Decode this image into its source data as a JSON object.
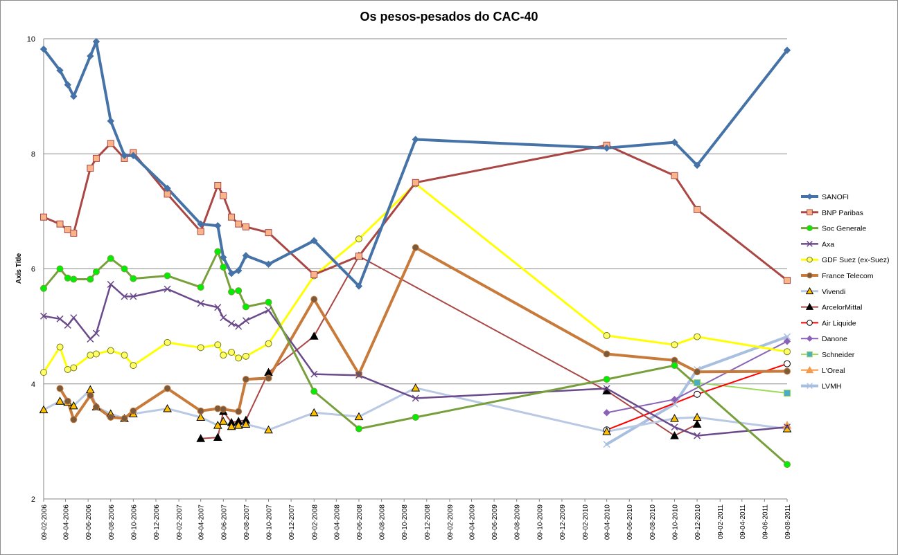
{
  "chart_data": {
    "type": "line",
    "title": "Os pesos-pesados do CAC-40",
    "xlabel": "",
    "ylabel": "Axis Title",
    "ylim": [
      2,
      10
    ],
    "yticks": [
      "2",
      "4",
      "6",
      "8",
      "10"
    ],
    "xlim": [
      "2006-02-09",
      "2011-08-09"
    ],
    "grid": "horizontal",
    "legend_position": "right",
    "x_ticks": [
      "09-02-2006",
      "09-04-2006",
      "09-06-2006",
      "09-08-2006",
      "09-10-2006",
      "09-12-2006",
      "09-02-2007",
      "09-04-2007",
      "09-06-2007",
      "09-08-2007",
      "09-10-2007",
      "09-12-2007",
      "09-02-2008",
      "09-04-2008",
      "09-06-2008",
      "09-08-2008",
      "09-10-2008",
      "09-12-2008",
      "09-02-2009",
      "09-04-2009",
      "09-06-2009",
      "09-08-2009",
      "09-10-2009",
      "09-12-2009",
      "09-02-2010",
      "09-04-2010",
      "09-06-2010",
      "09-08-2010",
      "09-10-2010",
      "09-12-2010",
      "09-02-2011",
      "09-04-2011",
      "09-06-2011",
      "09-08-2011"
    ],
    "series": [
      {
        "name": "SANOFI",
        "color": "#4572a7",
        "marker": "diamond",
        "x": [
          "2006-02-09",
          "2006-03-25",
          "2006-04-15",
          "2006-05-01",
          "2006-06-15",
          "2006-07-01",
          "2006-08-09",
          "2006-09-15",
          "2006-10-09",
          "2007-01-09",
          "2007-04-09",
          "2007-05-25",
          "2007-06-09",
          "2007-07-01",
          "2007-07-20",
          "2007-08-09",
          "2007-10-09",
          "2008-02-09",
          "2008-06-09",
          "2008-11-09",
          "2010-04-09",
          "2010-10-09",
          "2010-12-09",
          "2011-08-09"
        ],
        "values": [
          9.82,
          9.45,
          9.2,
          9.0,
          9.7,
          9.95,
          8.57,
          7.97,
          7.97,
          7.4,
          6.78,
          6.75,
          6.2,
          5.92,
          5.97,
          6.23,
          6.08,
          6.49,
          5.7,
          8.25,
          8.1,
          8.2,
          7.8,
          9.8
        ]
      },
      {
        "name": "BNP Paribas",
        "color": "#aa4643",
        "marker": "square",
        "x": [
          "2006-02-09",
          "2006-03-25",
          "2006-04-15",
          "2006-05-01",
          "2006-06-15",
          "2006-07-01",
          "2006-08-09",
          "2006-09-15",
          "2006-10-09",
          "2007-01-09",
          "2007-04-09",
          "2007-05-25",
          "2007-06-09",
          "2007-07-01",
          "2007-07-20",
          "2007-08-09",
          "2007-10-09",
          "2008-02-09",
          "2008-06-09",
          "2008-11-09",
          "2010-04-09",
          "2010-10-09",
          "2010-12-09",
          "2011-08-09"
        ],
        "values": [
          6.9,
          6.78,
          6.68,
          6.62,
          7.75,
          7.92,
          8.18,
          7.92,
          8.02,
          7.3,
          6.65,
          7.45,
          7.27,
          6.9,
          6.78,
          6.73,
          6.63,
          5.9,
          6.22,
          7.5,
          8.15,
          7.62,
          7.03,
          5.8
        ]
      },
      {
        "name": "Soc Generale",
        "color": "#77a03d",
        "marker": "circle",
        "x": [
          "2006-02-09",
          "2006-03-25",
          "2006-04-15",
          "2006-05-01",
          "2006-06-15",
          "2006-07-01",
          "2006-08-09",
          "2006-09-15",
          "2006-10-09",
          "2007-01-09",
          "2007-04-09",
          "2007-05-25",
          "2007-06-09",
          "2007-07-01",
          "2007-07-20",
          "2007-08-09",
          "2007-10-09",
          "2008-02-09",
          "2008-06-09",
          "2008-11-09",
          "2010-04-09",
          "2010-10-09",
          "2011-08-09"
        ],
        "values": [
          5.66,
          6.0,
          5.84,
          5.82,
          5.82,
          5.95,
          6.18,
          6.0,
          5.83,
          5.88,
          5.68,
          6.3,
          6.03,
          5.6,
          5.62,
          5.34,
          5.42,
          3.87,
          3.22,
          3.42,
          4.08,
          4.32,
          2.6
        ]
      },
      {
        "name": "Axa",
        "color": "#6a4a8a",
        "marker": "x",
        "x": [
          "2006-02-09",
          "2006-03-25",
          "2006-04-15",
          "2006-05-01",
          "2006-06-15",
          "2006-07-01",
          "2006-08-09",
          "2006-09-15",
          "2006-10-09",
          "2007-01-09",
          "2007-04-09",
          "2007-05-25",
          "2007-06-09",
          "2007-07-01",
          "2007-07-20",
          "2007-08-09",
          "2007-10-09",
          "2008-02-09",
          "2008-06-09",
          "2008-11-09",
          "2010-04-09",
          "2010-10-09",
          "2010-12-09",
          "2011-08-09"
        ],
        "values": [
          5.18,
          5.13,
          5.02,
          5.15,
          4.78,
          4.88,
          5.73,
          5.52,
          5.52,
          5.65,
          5.4,
          5.33,
          5.15,
          5.05,
          5.0,
          5.1,
          5.28,
          4.17,
          4.15,
          3.75,
          3.92,
          3.25,
          3.1,
          3.25
        ]
      },
      {
        "name": "GDF Suez (ex-Suez)",
        "color": "#ffff00",
        "marker": "circle",
        "x": [
          "2006-02-09",
          "2006-03-25",
          "2006-04-15",
          "2006-05-01",
          "2006-06-15",
          "2006-07-01",
          "2006-08-09",
          "2006-09-15",
          "2006-10-09",
          "2007-01-09",
          "2007-04-09",
          "2007-05-25",
          "2007-06-09",
          "2007-07-01",
          "2007-07-20",
          "2007-08-09",
          "2007-10-09",
          "2008-02-09",
          "2008-06-09",
          "2008-11-09",
          "2010-04-09",
          "2010-10-09",
          "2010-12-09",
          "2011-08-09"
        ],
        "values": [
          4.2,
          4.64,
          4.25,
          4.28,
          4.5,
          4.52,
          4.58,
          4.5,
          4.32,
          4.72,
          4.63,
          4.68,
          4.5,
          4.55,
          4.45,
          4.48,
          4.7,
          5.88,
          6.52,
          7.48,
          4.84,
          4.68,
          4.82,
          4.56
        ]
      },
      {
        "name": "France Telecom",
        "color": "#c77a3a",
        "marker": "circle",
        "x": [
          "2006-03-25",
          "2006-04-15",
          "2006-05-01",
          "2006-06-15",
          "2006-07-01",
          "2006-08-09",
          "2006-09-15",
          "2006-10-09",
          "2007-01-09",
          "2007-04-09",
          "2007-05-25",
          "2007-06-09",
          "2007-07-20",
          "2007-08-09",
          "2007-10-09",
          "2008-02-09",
          "2008-06-09",
          "2008-11-09",
          "2010-04-09",
          "2010-10-09",
          "2010-12-09",
          "2011-08-09"
        ],
        "values": [
          3.92,
          3.7,
          3.38,
          3.8,
          3.6,
          3.42,
          3.4,
          3.53,
          3.92,
          3.53,
          3.57,
          3.56,
          3.52,
          4.08,
          4.1,
          5.47,
          4.17,
          6.37,
          4.52,
          4.41,
          4.21,
          4.22
        ]
      },
      {
        "name": "Vivendi",
        "color": "#b9c8e3",
        "marker": "triangle",
        "x": [
          "2006-02-09",
          "2006-03-25",
          "2006-04-15",
          "2006-05-01",
          "2006-06-15",
          "2006-07-01",
          "2006-08-09",
          "2006-09-15",
          "2006-10-09",
          "2007-01-09",
          "2007-04-09",
          "2007-05-25",
          "2007-06-09",
          "2007-07-01",
          "2007-07-20",
          "2007-08-09",
          "2007-10-09",
          "2008-02-09",
          "2008-06-09",
          "2008-11-09",
          "2010-04-09",
          "2010-10-09",
          "2010-12-09",
          "2011-08-09"
        ],
        "values": [
          3.55,
          3.7,
          3.68,
          3.62,
          3.9,
          3.6,
          3.48,
          3.4,
          3.48,
          3.57,
          3.42,
          3.28,
          3.35,
          3.26,
          3.28,
          3.3,
          3.2,
          3.5,
          3.43,
          3.93,
          3.17,
          3.4,
          3.42,
          3.22
        ]
      },
      {
        "name": "ArcelorMittal",
        "color": "#aa4643",
        "marker": "triangle",
        "x": [
          "2007-04-09",
          "2007-05-25",
          "2007-06-09",
          "2007-07-01",
          "2007-07-20",
          "2007-08-09",
          "2007-10-09",
          "2008-02-09",
          "2008-06-09",
          "2010-04-09",
          "2010-10-09",
          "2010-12-09"
        ],
        "values": [
          3.05,
          3.07,
          3.52,
          3.33,
          3.35,
          3.37,
          4.2,
          4.83,
          6.22,
          3.88,
          3.1,
          3.3
        ]
      },
      {
        "name": "Air Liquide",
        "color": "#ff0000",
        "marker": "circle",
        "x": [
          "2010-04-09",
          "2010-12-09",
          "2011-08-09"
        ],
        "values": [
          3.2,
          3.82,
          4.35
        ]
      },
      {
        "name": "Danone",
        "color": "#8b62b8",
        "marker": "diamond",
        "x": [
          "2010-04-09",
          "2010-10-09",
          "2011-08-09"
        ],
        "values": [
          3.5,
          3.73,
          4.74
        ]
      },
      {
        "name": "Schneider",
        "color": "#9cdb5a",
        "marker": "square",
        "x": [
          "2010-12-09",
          "2011-08-09"
        ],
        "values": [
          4.02,
          3.84
        ]
      },
      {
        "name": "L'Oreal",
        "color": "#f59a4a",
        "marker": "triangle",
        "x": [
          "2011-08-09"
        ],
        "values": [
          3.28
        ]
      },
      {
        "name": "LVMH",
        "color": "#a9bfe0",
        "marker": "x",
        "x": [
          "2010-04-09",
          "2010-10-09",
          "2010-12-09",
          "2011-08-09"
        ],
        "values": [
          2.95,
          3.65,
          4.25,
          4.82
        ]
      }
    ]
  }
}
